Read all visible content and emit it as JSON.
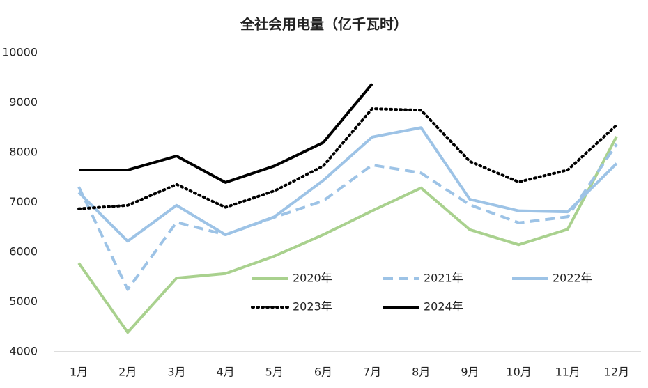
{
  "chart_data": {
    "type": "line",
    "title": "全社会用电量（亿千瓦时）",
    "categories": [
      "1月",
      "2月",
      "3月",
      "4月",
      "5月",
      "6月",
      "7月",
      "8月",
      "9月",
      "10月",
      "11月",
      "12月"
    ],
    "series": [
      {
        "name": "2020年",
        "color": "#a9d18e",
        "style": "solid",
        "values": [
          5780,
          4390,
          5480,
          5570,
          5920,
          6350,
          6830,
          7290,
          6450,
          6150,
          6460,
          8320
        ]
      },
      {
        "name": "2021年",
        "color": "#9dc3e6",
        "style": "dashed",
        "values": [
          7310,
          5250,
          6600,
          6350,
          6700,
          7030,
          7750,
          7590,
          6950,
          6590,
          6710,
          8170
        ]
      },
      {
        "name": "2022年",
        "color": "#9dc3e6",
        "style": "solid",
        "values": [
          7200,
          6220,
          6940,
          6350,
          6710,
          7440,
          8310,
          8500,
          7060,
          6830,
          6810,
          7780
        ]
      },
      {
        "name": "2023年",
        "color": "#000000",
        "style": "dotted",
        "values": [
          6870,
          6940,
          7360,
          6900,
          7230,
          7730,
          8880,
          8850,
          7820,
          7410,
          7650,
          8550
        ]
      },
      {
        "name": "2024年",
        "color": "#000000",
        "style": "solid",
        "values": [
          7650,
          7650,
          7930,
          7400,
          7730,
          8200,
          9380,
          null,
          null,
          null,
          null,
          null
        ]
      }
    ],
    "ylim": [
      4000,
      10000
    ],
    "yticks": [
      4000,
      5000,
      6000,
      7000,
      8000,
      9000,
      10000
    ],
    "grid": false,
    "legend": "inside-bottom"
  }
}
